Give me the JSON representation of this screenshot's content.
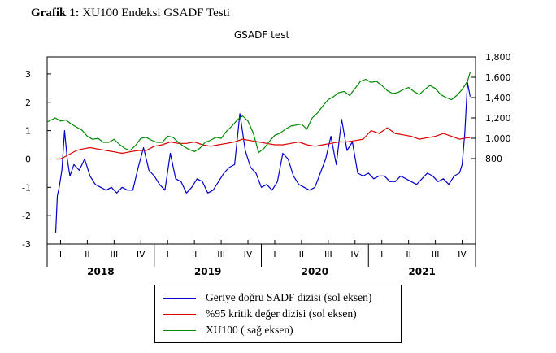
{
  "caption": {
    "prefix": "Grafik 1:",
    "text": "XU100 Endeksi GSADF Testi"
  },
  "chart_data": {
    "type": "line",
    "title": "GSADF test",
    "left_axis": {
      "ticks": [
        -3,
        -2,
        -1,
        0,
        1,
        2,
        3
      ],
      "range": [
        -3,
        3.6
      ]
    },
    "right_axis": {
      "ticks": [
        800,
        1000,
        1200,
        1400,
        1600,
        1800
      ],
      "labels": [
        "800",
        "1,000",
        "1,200",
        "1,400",
        "1,600",
        "1,800"
      ],
      "range": [
        -40,
        1800
      ]
    },
    "x_axis": {
      "quarter_labels": [
        "I",
        "II",
        "III",
        "IV",
        "I",
        "II",
        "III",
        "IV",
        "I",
        "II",
        "III",
        "IV",
        "I",
        "II",
        "III",
        "IV"
      ],
      "years": [
        "2018",
        "2019",
        "2020",
        "2021"
      ]
    },
    "series": [
      {
        "name": "Geriye doğru SADF dizisi (sol eksen)",
        "axis": "left",
        "color": "#0000cc",
        "x": [
          0.32,
          0.38,
          0.45,
          0.55,
          0.65,
          0.75,
          0.85,
          1.0,
          1.2,
          1.4,
          1.6,
          1.8,
          2.0,
          2.2,
          2.4,
          2.6,
          2.8,
          3.0,
          3.2,
          3.4,
          3.6,
          3.8,
          4.0,
          4.2,
          4.4,
          4.6,
          4.8,
          5.0,
          5.2,
          5.4,
          5.6,
          5.8,
          6.0,
          6.2,
          6.4,
          6.6,
          6.8,
          7.0,
          7.2,
          7.4,
          7.6,
          7.8,
          8.0,
          8.2,
          8.4,
          8.6,
          8.8,
          9.0,
          9.2,
          9.4,
          9.6,
          9.8,
          10.0,
          10.2,
          10.4,
          10.6,
          10.8,
          11.0,
          11.2,
          11.4,
          11.6,
          11.8,
          12.0,
          12.2,
          12.4,
          12.6,
          12.8,
          13.0,
          13.2,
          13.4,
          13.6,
          13.8,
          14.0,
          14.2,
          14.4,
          14.6,
          14.8,
          15.0,
          15.2,
          15.4,
          15.5,
          15.6,
          15.7,
          15.8
        ],
        "y": [
          -2.6,
          -1.3,
          -1.0,
          -0.4,
          1.0,
          0.0,
          -0.6,
          -0.2,
          -0.4,
          0.0,
          -0.6,
          -0.9,
          -1.0,
          -1.1,
          -1.0,
          -1.2,
          -1.0,
          -1.1,
          -1.1,
          -0.3,
          0.4,
          -0.4,
          -0.6,
          -0.9,
          -1.1,
          0.2,
          -0.7,
          -0.8,
          -1.2,
          -1.0,
          -0.7,
          -0.8,
          -1.2,
          -1.1,
          -0.8,
          -0.5,
          -0.3,
          -0.2,
          1.6,
          0.3,
          -0.3,
          -0.5,
          -1.0,
          -0.9,
          -1.1,
          -0.8,
          0.2,
          0.0,
          -0.6,
          -0.9,
          -1.0,
          -1.1,
          -1.0,
          -0.5,
          0.0,
          0.8,
          -0.2,
          1.4,
          0.3,
          0.6,
          -0.5,
          -0.6,
          -0.5,
          -0.7,
          -0.6,
          -0.6,
          -0.8,
          -0.8,
          -0.6,
          -0.7,
          -0.8,
          -0.9,
          -0.7,
          -0.5,
          -0.6,
          -0.8,
          -0.7,
          -0.9,
          -0.6,
          -0.5,
          -0.2,
          0.9,
          2.7,
          2.2
        ]
      },
      {
        "name": "%95 kritik değer dizisi (sol eksen)",
        "axis": "left",
        "color": "#dd0000",
        "x": [
          0.32,
          0.5,
          0.7,
          0.9,
          1.1,
          1.3,
          1.6,
          1.9,
          2.2,
          2.5,
          2.8,
          3.1,
          3.4,
          3.7,
          4.0,
          4.3,
          4.6,
          4.9,
          5.2,
          5.5,
          5.8,
          6.1,
          6.4,
          6.7,
          7.0,
          7.3,
          7.6,
          7.9,
          8.2,
          8.5,
          8.8,
          9.1,
          9.4,
          9.7,
          10.0,
          10.3,
          10.6,
          10.9,
          11.2,
          11.5,
          11.8,
          12.1,
          12.4,
          12.7,
          13.0,
          13.3,
          13.6,
          13.9,
          14.2,
          14.5,
          14.8,
          15.1,
          15.4,
          15.7,
          15.8
        ],
        "y": [
          0.0,
          0.0,
          0.1,
          0.2,
          0.3,
          0.35,
          0.4,
          0.35,
          0.3,
          0.25,
          0.2,
          0.25,
          0.3,
          0.3,
          0.45,
          0.5,
          0.6,
          0.55,
          0.55,
          0.6,
          0.5,
          0.45,
          0.5,
          0.55,
          0.6,
          0.7,
          0.65,
          0.6,
          0.55,
          0.5,
          0.5,
          0.55,
          0.6,
          0.5,
          0.45,
          0.5,
          0.55,
          0.6,
          0.6,
          0.65,
          0.7,
          1.0,
          0.9,
          1.1,
          0.9,
          0.85,
          0.8,
          0.7,
          0.75,
          0.8,
          0.9,
          0.8,
          0.7,
          0.75,
          0.75
        ]
      },
      {
        "name": "XU100 ( sağ eksen)",
        "axis": "right",
        "color": "#008800",
        "x": [
          0.0,
          0.15,
          0.3,
          0.5,
          0.7,
          0.9,
          1.1,
          1.3,
          1.5,
          1.7,
          1.9,
          2.1,
          2.3,
          2.5,
          2.7,
          2.9,
          3.1,
          3.3,
          3.5,
          3.7,
          3.9,
          4.1,
          4.3,
          4.5,
          4.7,
          4.9,
          5.1,
          5.3,
          5.5,
          5.7,
          5.9,
          6.1,
          6.3,
          6.5,
          6.7,
          6.9,
          7.1,
          7.3,
          7.5,
          7.7,
          7.9,
          8.1,
          8.3,
          8.5,
          8.7,
          8.9,
          9.1,
          9.3,
          9.5,
          9.7,
          9.9,
          10.1,
          10.3,
          10.5,
          10.7,
          10.9,
          11.1,
          11.3,
          11.5,
          11.7,
          11.9,
          12.1,
          12.3,
          12.5,
          12.7,
          12.9,
          13.1,
          13.3,
          13.5,
          13.7,
          13.9,
          14.1,
          14.3,
          14.5,
          14.7,
          14.9,
          15.1,
          15.3,
          15.5,
          15.7,
          15.8
        ],
        "y": [
          1160,
          1180,
          1200,
          1170,
          1180,
          1140,
          1110,
          1080,
          1020,
          990,
          1000,
          960,
          960,
          990,
          940,
          900,
          880,
          930,
          1000,
          1010,
          980,
          960,
          960,
          1020,
          1010,
          960,
          920,
          890,
          870,
          900,
          960,
          980,
          1010,
          1000,
          1070,
          1120,
          1180,
          1220,
          1170,
          1050,
          860,
          900,
          970,
          1030,
          1050,
          1090,
          1120,
          1130,
          1140,
          1090,
          1200,
          1250,
          1320,
          1380,
          1410,
          1450,
          1460,
          1420,
          1490,
          1560,
          1580,
          1550,
          1560,
          1520,
          1470,
          1440,
          1450,
          1480,
          1500,
          1460,
          1430,
          1480,
          1520,
          1490,
          1430,
          1400,
          1380,
          1420,
          1480,
          1560,
          1650
        ]
      }
    ],
    "legend_position": "below"
  }
}
